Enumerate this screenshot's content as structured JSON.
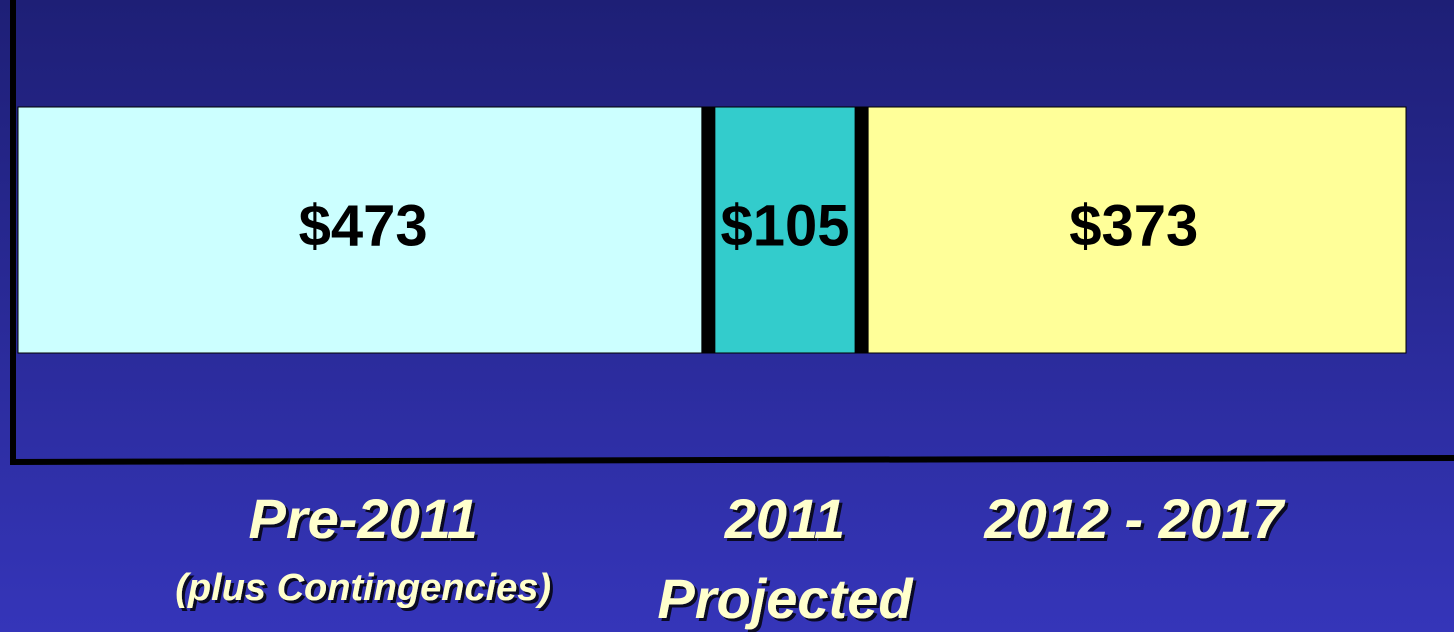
{
  "chart_data": {
    "type": "stacked_bar_horizontal",
    "series": [
      {
        "name": "Pre-2011",
        "sublabel": "(plus  Contingencies)",
        "color": "#ccffff",
        "values": [
          473
        ],
        "value_labels": [
          "$473"
        ]
      },
      {
        "name": "2011",
        "sublabel": "Projected",
        "color": "#33cccc",
        "values": [
          105
        ],
        "value_labels": [
          "$105"
        ]
      },
      {
        "name": "2012 - 2017",
        "color": "#ffff99",
        "values": [
          373
        ],
        "value_labels": [
          "$373"
        ]
      }
    ]
  }
}
